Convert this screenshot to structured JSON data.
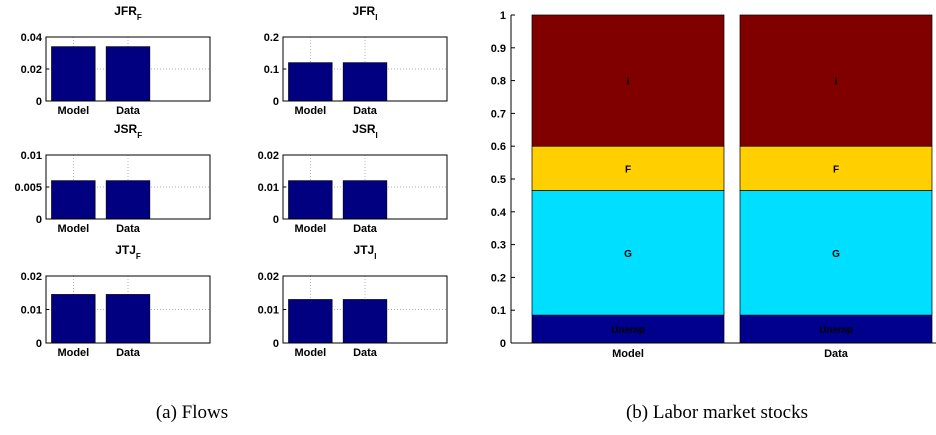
{
  "colors": {
    "bar": "#000080",
    "unemp": "#00008C",
    "g": "#00DFFF",
    "f": "#FFCF00",
    "i": "#800000"
  },
  "captions": {
    "a": "(a) Flows",
    "b": "(b) Labor market stocks"
  },
  "chart_data": [
    {
      "type": "bar",
      "title": "JFR",
      "title_subscript": "F",
      "categories": [
        "Model",
        "Data"
      ],
      "values": [
        0.034,
        0.034
      ],
      "ylim": [
        0,
        0.04
      ],
      "yticks": [
        0,
        0.02,
        0.04
      ],
      "ytick_labels": [
        "0",
        "0.02",
        "0.04"
      ],
      "grid": true
    },
    {
      "type": "bar",
      "title": "JFR",
      "title_subscript": "I",
      "categories": [
        "Model",
        "Data"
      ],
      "values": [
        0.12,
        0.12
      ],
      "ylim": [
        0,
        0.2
      ],
      "yticks": [
        0,
        0.1,
        0.2
      ],
      "ytick_labels": [
        "0",
        "0.1",
        "0.2"
      ],
      "grid": true
    },
    {
      "type": "bar",
      "title": "JSR",
      "title_subscript": "F",
      "categories": [
        "Model",
        "Data"
      ],
      "values": [
        0.006,
        0.006
      ],
      "ylim": [
        0,
        0.01
      ],
      "yticks": [
        0,
        0.005,
        0.01
      ],
      "ytick_labels": [
        "0",
        "0.005",
        "0.01"
      ],
      "grid": true
    },
    {
      "type": "bar",
      "title": "JSR",
      "title_subscript": "I",
      "categories": [
        "Model",
        "Data"
      ],
      "values": [
        0.012,
        0.012
      ],
      "ylim": [
        0,
        0.02
      ],
      "yticks": [
        0,
        0.01,
        0.02
      ],
      "ytick_labels": [
        "0",
        "0.01",
        "0.02"
      ],
      "grid": true
    },
    {
      "type": "bar",
      "title": "JTJ",
      "title_subscript": "F",
      "categories": [
        "Model",
        "Data"
      ],
      "values": [
        0.0145,
        0.0145
      ],
      "ylim": [
        0,
        0.02
      ],
      "yticks": [
        0,
        0.01,
        0.02
      ],
      "ytick_labels": [
        "0",
        "0.01",
        "0.02"
      ],
      "grid": true
    },
    {
      "type": "bar",
      "title": "JTJ",
      "title_subscript": "I",
      "categories": [
        "Model",
        "Data"
      ],
      "values": [
        0.013,
        0.013
      ],
      "ylim": [
        0,
        0.02
      ],
      "yticks": [
        0,
        0.01,
        0.02
      ],
      "ytick_labels": [
        "0",
        "0.01",
        "0.02"
      ],
      "grid": true
    },
    {
      "type": "stacked-bar",
      "categories": [
        "Model",
        "Data"
      ],
      "ylim": [
        0,
        1
      ],
      "yticks": [
        0,
        0.1,
        0.2,
        0.3,
        0.4,
        0.5,
        0.6,
        0.7,
        0.8,
        0.9,
        1
      ],
      "ytick_labels": [
        "0",
        "0.1",
        "0.2",
        "0.3",
        "0.4",
        "0.5",
        "0.6",
        "0.7",
        "0.8",
        "0.9",
        "1"
      ],
      "series": [
        {
          "name": "Unemp",
          "values": [
            0.085,
            0.085
          ]
        },
        {
          "name": "G",
          "values": [
            0.38,
            0.38
          ]
        },
        {
          "name": "F",
          "values": [
            0.135,
            0.135
          ]
        },
        {
          "name": "I",
          "values": [
            0.4,
            0.4
          ]
        }
      ],
      "grid": false
    }
  ]
}
